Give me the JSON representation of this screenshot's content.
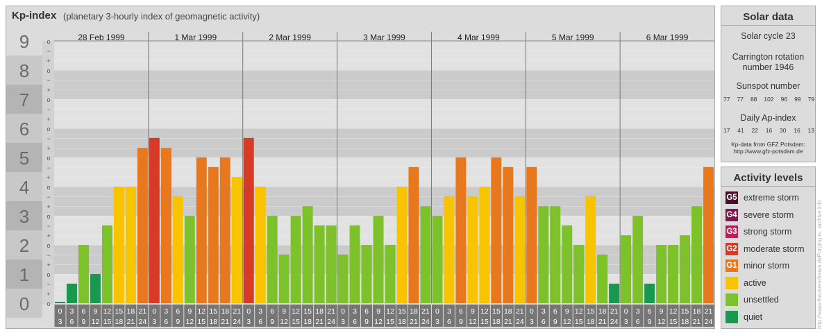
{
  "chart_data": {
    "type": "bar",
    "title": "Kp-index",
    "subtitle": "(planetary 3-hourly index of geomagnetic activity)",
    "ylim": [
      0,
      9
    ],
    "y_ticks": [
      "0",
      "1",
      "2",
      "3",
      "4",
      "5",
      "6",
      "7",
      "8",
      "9"
    ],
    "y_minor_ticks": [
      "o",
      "+",
      "−",
      "o"
    ],
    "days": [
      "28 Feb 1999",
      "1 Mar 1999",
      "2 Mar 1999",
      "3 Mar 1999",
      "4 Mar 1999",
      "5 Mar 1999",
      "6 Mar 1999"
    ],
    "interval_labels": [
      [
        "0",
        "3"
      ],
      [
        "3",
        "6"
      ],
      [
        "6",
        "9"
      ],
      [
        "9",
        "12"
      ],
      [
        "12",
        "15"
      ],
      [
        "15",
        "18"
      ],
      [
        "18",
        "21"
      ],
      [
        "21",
        "24"
      ]
    ],
    "values": [
      0.0,
      0.67,
      2.0,
      1.0,
      2.67,
      4.0,
      4.0,
      5.33,
      5.67,
      5.33,
      3.67,
      3.0,
      5.0,
      4.67,
      5.0,
      4.33,
      5.67,
      4.0,
      3.0,
      1.67,
      3.0,
      3.33,
      2.67,
      2.67,
      1.67,
      2.67,
      2.0,
      3.0,
      2.0,
      4.0,
      4.67,
      3.33,
      3.0,
      3.67,
      5.0,
      3.67,
      4.0,
      5.0,
      4.67,
      3.67,
      4.67,
      3.33,
      3.33,
      2.67,
      2.0,
      3.67,
      1.67,
      0.67,
      2.33,
      3.0,
      0.67,
      2.0,
      2.0,
      2.33,
      3.33,
      4.67
    ],
    "colors": {
      "quiet": "#1a9850",
      "unsettled": "#7dc22a",
      "active": "#f8c400",
      "G1": "#e8781e",
      "G2": "#d93a26",
      "G3": "#c21e5a",
      "G4": "#7b1b4c",
      "G5": "#4a0f2c"
    }
  },
  "solar_data": {
    "title": "Solar data",
    "solar_cycle": "Solar cycle 23",
    "carrington_line1": "Carrington rotation",
    "carrington_line2": "number 1946",
    "sunspot_title": "Sunspot number",
    "sunspot_numbers": [
      "77",
      "77",
      "88",
      "102",
      "96",
      "99",
      "79"
    ],
    "ap_title": "Daily Ap-index",
    "ap_values": [
      "17",
      "41",
      "22",
      "16",
      "30",
      "16",
      "13"
    ],
    "source_line1": "Kp-data from GFZ Potsdam:",
    "source_line2": "http://www.gfz-potsdam.de"
  },
  "activity_levels": {
    "title": "Activity levels",
    "items": [
      {
        "badge": "G5",
        "label": "extreme storm",
        "color": "#4a0f2c"
      },
      {
        "badge": "G4",
        "label": "severe storm",
        "color": "#7b1b4c"
      },
      {
        "badge": "G3",
        "label": "strong storm",
        "color": "#c21e5a"
      },
      {
        "badge": "G2",
        "label": "moderate storm",
        "color": "#d93a26"
      },
      {
        "badge": "G1",
        "label": "minor storm",
        "color": "#e8781e"
      },
      {
        "badge": "",
        "label": "active",
        "color": "#f8c400"
      },
      {
        "badge": "",
        "label": "unsettled",
        "color": "#7dc22a"
      },
      {
        "badge": "",
        "label": "quiet",
        "color": "#1a9850"
      }
    ]
  },
  "watermark": "http://www.theusersdream.dePurging.ru_archive.info"
}
